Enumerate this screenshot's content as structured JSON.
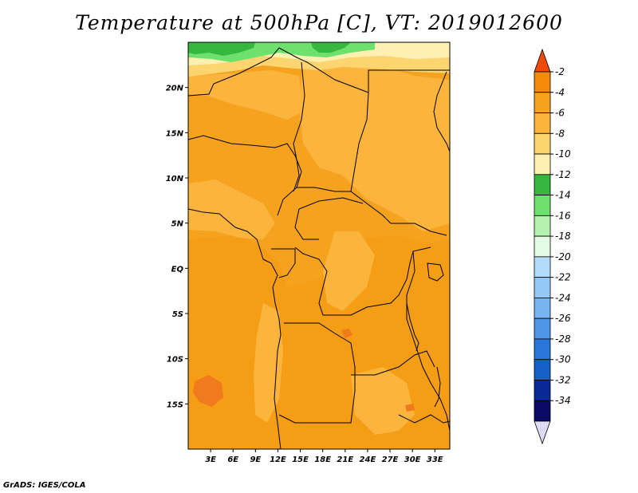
{
  "title": "Temperature at 500hPa [C], VT: 2019012600",
  "footer": "GrADS: IGES/COLA",
  "map": {
    "lat_labels": [
      {
        "value": 20,
        "label": "20N"
      },
      {
        "value": 15,
        "label": "15N"
      },
      {
        "value": 10,
        "label": "10N"
      },
      {
        "value": 5,
        "label": "5N"
      },
      {
        "value": 0,
        "label": "EQ"
      },
      {
        "value": -5,
        "label": "5S"
      },
      {
        "value": -10,
        "label": "10S"
      },
      {
        "value": -15,
        "label": "15S"
      }
    ],
    "lon_labels": [
      {
        "value": 3,
        "label": "3E"
      },
      {
        "value": 6,
        "label": "6E"
      },
      {
        "value": 9,
        "label": "9E"
      },
      {
        "value": 12,
        "label": "12E"
      },
      {
        "value": 15,
        "label": "15E"
      },
      {
        "value": 18,
        "label": "18E"
      },
      {
        "value": 21,
        "label": "21E"
      },
      {
        "value": 24,
        "label": "24E"
      },
      {
        "value": 27,
        "label": "27E"
      },
      {
        "value": 30,
        "label": "30E"
      },
      {
        "value": 33,
        "label": "33E"
      }
    ],
    "lat_range": [
      -20,
      25
    ],
    "lon_range": [
      0,
      35
    ]
  },
  "colorbar": {
    "levels": [
      "-2",
      "-4",
      "-6",
      "-8",
      "-10",
      "-12",
      "-14",
      "-16",
      "-18",
      "-20",
      "-22",
      "-24",
      "-26",
      "-28",
      "-30",
      "-32",
      "-34"
    ],
    "colors": [
      "#f04a0a",
      "#f58a0a",
      "#f5a21e",
      "#fbb43c",
      "#fcd470",
      "#fdf0b0",
      "#36b83e",
      "#6ee06e",
      "#b4f0b0",
      "#e2fbe4",
      "#b4dcfa",
      "#96c8f5",
      "#78b4f0",
      "#5096e6",
      "#2878dc",
      "#1460c8",
      "#0a2896",
      "#0a0a64",
      "#dcdcf8"
    ]
  }
}
